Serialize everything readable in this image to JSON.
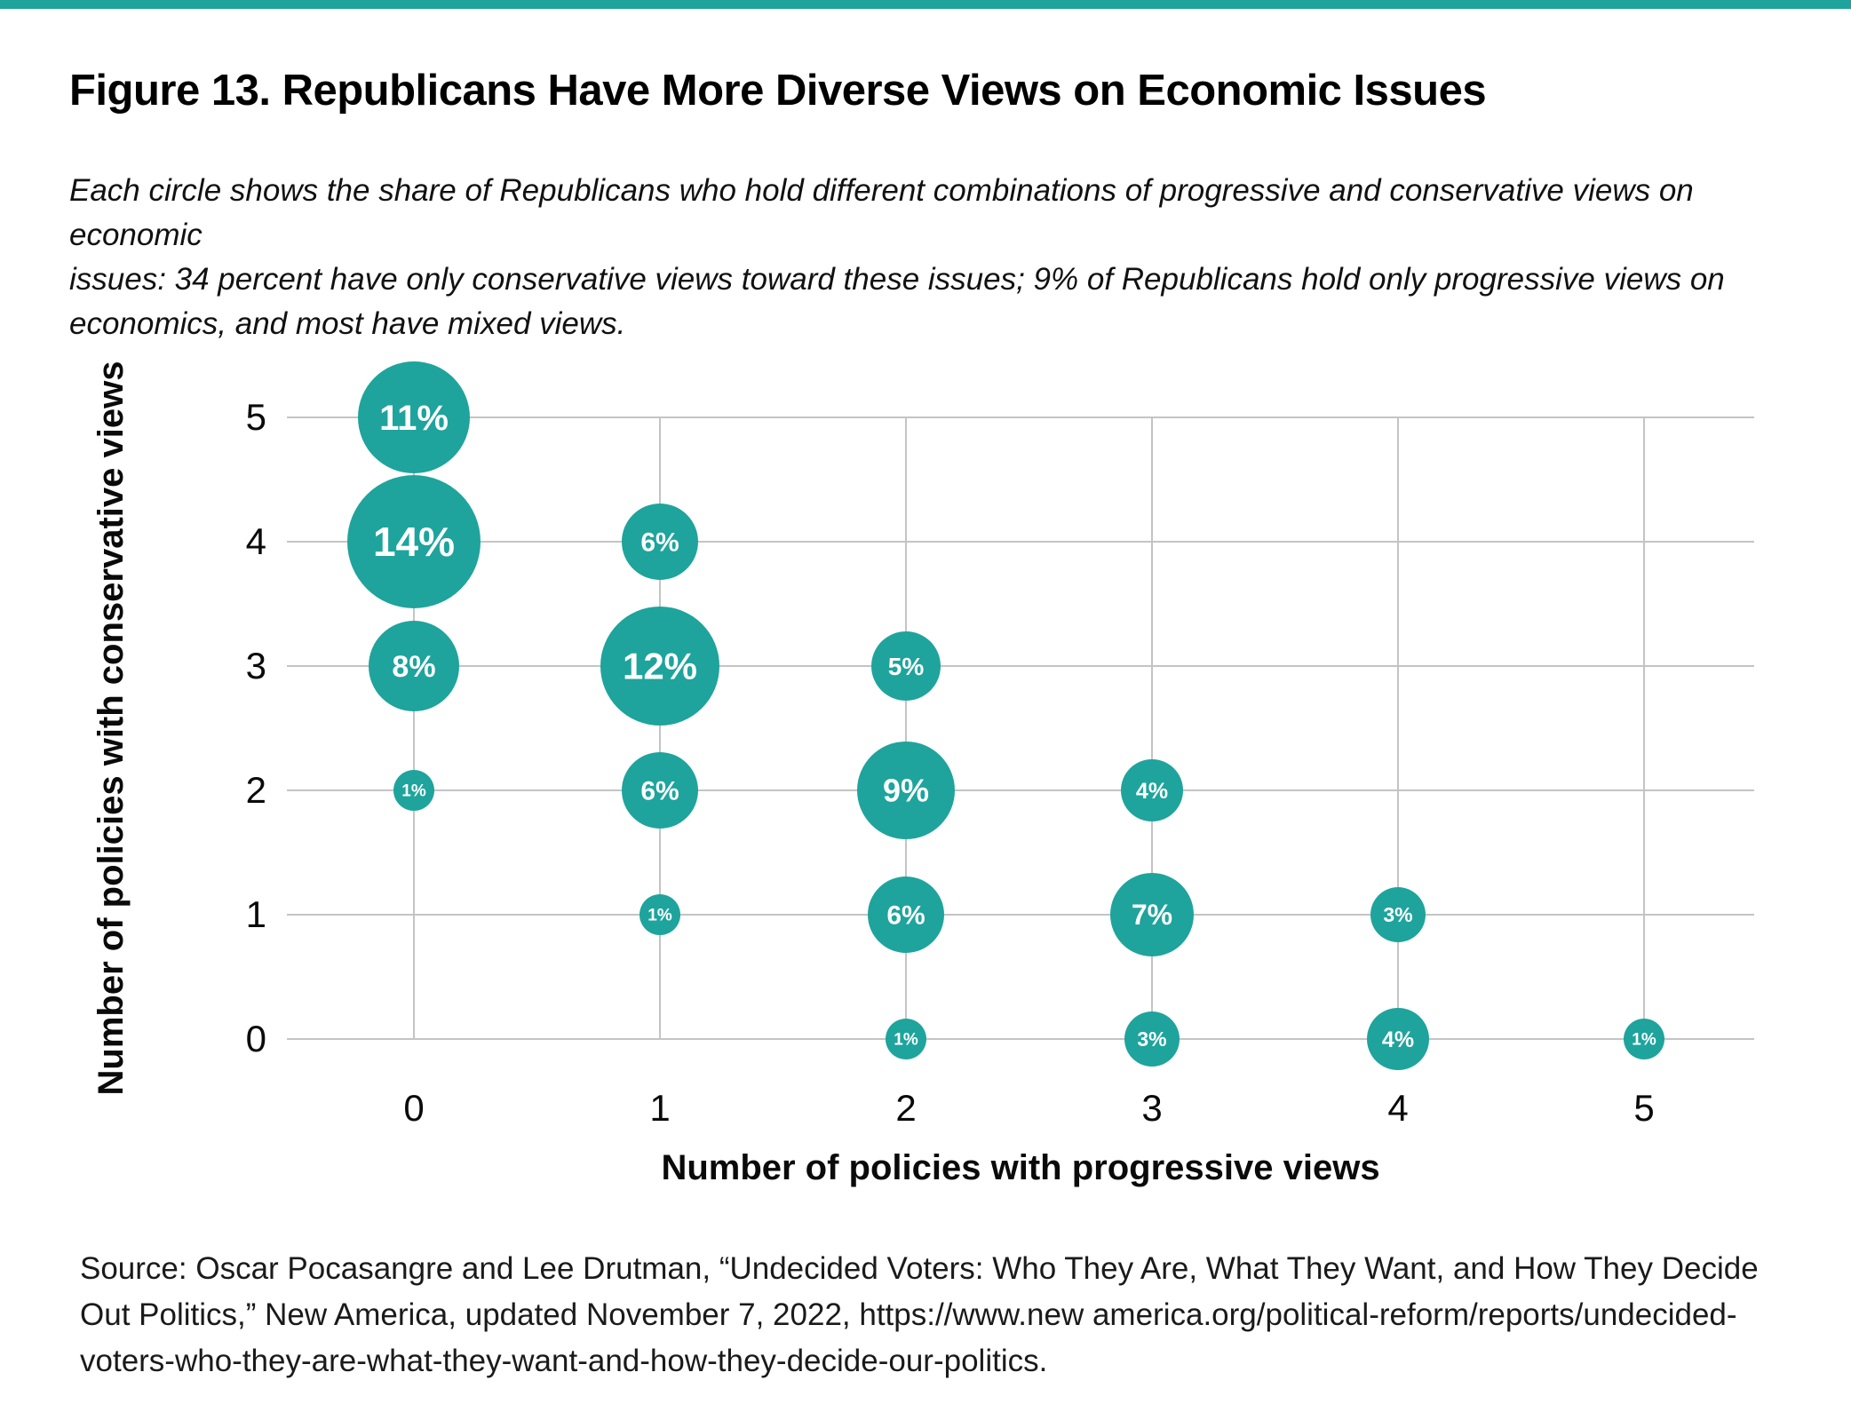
{
  "figure": {
    "title": "Figure 13. Republicans Have More Diverse Views on Economic Issues",
    "subtitle": "Each circle shows the share of Republicans who hold different combinations of progressive and conservative views on economic\nissues: 34 percent have only conservative views toward these issues; 9% of Republicans hold only progressive views on\neconomics, and most have mixed views.",
    "source": "Source: Oscar Pocasangre and Lee Drutman, “Undecided Voters: Who They Are, What They Want, and How They Decide\nOut Politics,” New America, updated November 7, 2022, https://www.new america.org/political-reform/reports/undecided-\nvoters-who-they-are-what-they-want-and-how-they-decide-our-politics.",
    "accent_color": "#1ea49c"
  },
  "chart_data": {
    "type": "scatter",
    "subtype": "bubble",
    "title": "Figure 13. Republicans Have More Diverse Views on Economic Issues",
    "xlabel": "Number of policies with progressive views",
    "ylabel": "Number of policies with conservative views",
    "x_ticks": [
      0,
      1,
      2,
      3,
      4,
      5
    ],
    "y_ticks": [
      0,
      1,
      2,
      3,
      4,
      5
    ],
    "xlim": [
      -0.5,
      5.45
    ],
    "ylim": [
      0,
      5
    ],
    "grid": true,
    "legend": false,
    "bubble_color": "#1ea49c",
    "bubble_label_color": "#ffffff",
    "gridline_color": "#c4c4c4",
    "points": [
      {
        "x": 0,
        "y": 5,
        "value": 11,
        "label": "11%"
      },
      {
        "x": 0,
        "y": 4,
        "value": 14,
        "label": "14%"
      },
      {
        "x": 0,
        "y": 3,
        "value": 8,
        "label": "8%"
      },
      {
        "x": 0,
        "y": 2,
        "value": 1,
        "label": "1%"
      },
      {
        "x": 1,
        "y": 4,
        "value": 6,
        "label": "6%"
      },
      {
        "x": 1,
        "y": 3,
        "value": 12,
        "label": "12%"
      },
      {
        "x": 1,
        "y": 2,
        "value": 6,
        "label": "6%"
      },
      {
        "x": 1,
        "y": 1,
        "value": 1,
        "label": "1%"
      },
      {
        "x": 2,
        "y": 3,
        "value": 5,
        "label": "5%"
      },
      {
        "x": 2,
        "y": 2,
        "value": 9,
        "label": "9%"
      },
      {
        "x": 2,
        "y": 1,
        "value": 6,
        "label": "6%"
      },
      {
        "x": 2,
        "y": 0,
        "value": 1,
        "label": "1%"
      },
      {
        "x": 3,
        "y": 2,
        "value": 4,
        "label": "4%"
      },
      {
        "x": 3,
        "y": 1,
        "value": 7,
        "label": "7%"
      },
      {
        "x": 3,
        "y": 0,
        "value": 3,
        "label": "3%"
      },
      {
        "x": 4,
        "y": 1,
        "value": 3,
        "label": "3%"
      },
      {
        "x": 4,
        "y": 0,
        "value": 4,
        "label": "4%"
      },
      {
        "x": 5,
        "y": 0,
        "value": 1,
        "label": "1%"
      }
    ]
  }
}
